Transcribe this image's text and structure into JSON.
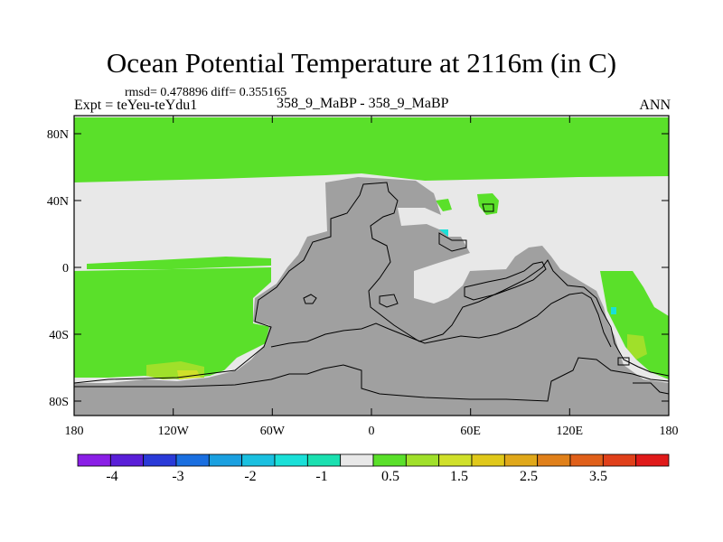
{
  "title": "Ocean Potential Temperature at 2116m (in C)",
  "stats": "rmsd= 0.478896 diff= 0.355165",
  "expt": "Expt = teYeu-teYdu1",
  "subtitle": "358_9_MaBP - 358_9_MaBP",
  "season": "ANN",
  "y_ticks": [
    "80N",
    "40N",
    "0",
    "40S",
    "80S"
  ],
  "x_ticks": [
    "180",
    "120W",
    "60W",
    "0",
    "60E",
    "120E",
    "180"
  ],
  "colorbar": {
    "colors": [
      "#8a1fe6",
      "#5a1fd8",
      "#2a3ad8",
      "#1a6fe0",
      "#1aa0e0",
      "#1ac0e0",
      "#1ae0d8",
      "#1ae0b0",
      "#e8e8e8",
      "#5ae02a",
      "#a0e02a",
      "#d0e02a",
      "#e0c81a",
      "#e0a81a",
      "#e0801a",
      "#e0601a",
      "#e0401a",
      "#e01a1a"
    ],
    "labels": [
      "-4",
      "-3",
      "-2",
      "-1",
      "0.5",
      "1.5",
      "2.5",
      "3.5"
    ]
  },
  "legend_colors": {
    "land": "#a0a0a0",
    "near_zero": "#e8e8e8",
    "warm": "#5ae02a",
    "warmer": "#a0e02a",
    "warmest": "#d0e02a",
    "cool": "#1ae0d8"
  }
}
